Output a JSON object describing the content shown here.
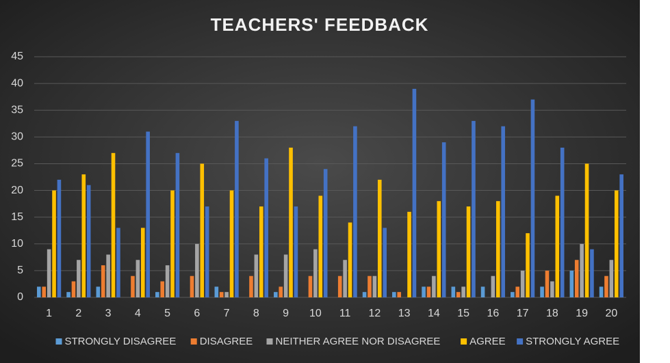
{
  "chart_data": {
    "type": "bar",
    "title": "TEACHERS' FEEDBACK",
    "categories": [
      "1",
      "2",
      "3",
      "4",
      "5",
      "6",
      "7",
      "8",
      "9",
      "10",
      "11",
      "12",
      "13",
      "14",
      "15",
      "16",
      "17",
      "18",
      "19",
      "20"
    ],
    "series": [
      {
        "name": "STRONGLY DISAGREE",
        "color": "#5b9bd5",
        "values": [
          2,
          1,
          2,
          0,
          1,
          0,
          2,
          0,
          1,
          0,
          0,
          1,
          1,
          2,
          2,
          2,
          1,
          2,
          5,
          2
        ]
      },
      {
        "name": "DISAGREE",
        "color": "#ed7d31",
        "values": [
          2,
          3,
          6,
          4,
          3,
          4,
          1,
          4,
          2,
          4,
          4,
          4,
          1,
          2,
          1,
          0,
          2,
          5,
          7,
          4
        ]
      },
      {
        "name": "NEITHER AGREE NOR DISAGREE",
        "color": "#a5a5a5",
        "values": [
          9,
          7,
          8,
          7,
          6,
          10,
          1,
          8,
          8,
          9,
          7,
          4,
          0,
          4,
          2,
          4,
          5,
          3,
          10,
          7
        ]
      },
      {
        "name": "AGREE",
        "color": "#ffc000",
        "values": [
          20,
          23,
          27,
          13,
          20,
          25,
          20,
          17,
          28,
          19,
          14,
          22,
          16,
          18,
          17,
          18,
          12,
          19,
          25,
          20
        ]
      },
      {
        "name": "STRONGLY AGREE",
        "color": "#4472c4",
        "values": [
          22,
          21,
          13,
          31,
          27,
          17,
          33,
          26,
          17,
          24,
          32,
          13,
          39,
          29,
          33,
          32,
          37,
          28,
          9,
          23
        ]
      }
    ],
    "ylim": [
      0,
      45
    ],
    "yticks": [
      0,
      5,
      10,
      15,
      20,
      25,
      30,
      35,
      40,
      45
    ],
    "grid": true,
    "legend": "bottom"
  }
}
